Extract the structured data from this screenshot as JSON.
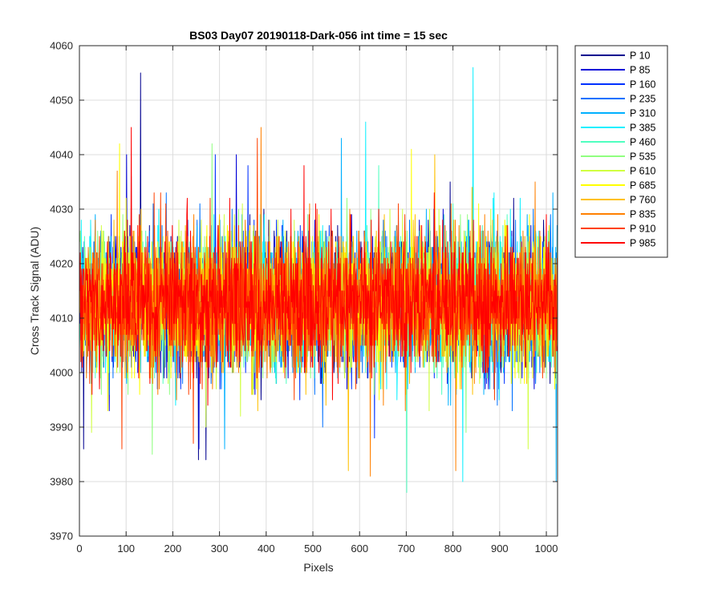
{
  "chart_data": {
    "type": "line",
    "title": "BS03 Day07 20190118-Dark-056 int time = 15 sec",
    "xlabel": "Pixels",
    "ylabel": "Cross Track Signal (ADU)",
    "xlim": [
      0,
      1024
    ],
    "ylim": [
      3970,
      4060
    ],
    "xticks": [
      0,
      100,
      200,
      300,
      400,
      500,
      600,
      700,
      800,
      900,
      1000
    ],
    "yticks": [
      3970,
      3980,
      3990,
      4000,
      4010,
      4020,
      4030,
      4040,
      4050,
      4060
    ],
    "grid": true,
    "legend_position": "outside-right",
    "series_summary": {
      "pixels": 1024,
      "typical_center": 4013,
      "typical_noise_std": 6
    },
    "series": [
      {
        "name": "P 10",
        "color": "#00008f",
        "spikes": [
          [
            130,
            4055
          ],
          [
            8,
            3986
          ],
          [
            254,
            3984
          ],
          [
            270,
            3984
          ]
        ]
      },
      {
        "name": "P 85",
        "color": "#0000d8",
        "spikes": [
          [
            100,
            4040
          ],
          [
            335,
            4040
          ],
          [
            255,
            3986
          ]
        ]
      },
      {
        "name": "P 160",
        "color": "#0030ff",
        "spikes": [
          [
            290,
            4040
          ],
          [
            360,
            4038
          ]
        ]
      },
      {
        "name": "P 235",
        "color": "#0070ff",
        "spikes": [
          [
            110,
            4036
          ],
          [
            520,
            3990
          ]
        ]
      },
      {
        "name": "P 310",
        "color": "#00b0ff",
        "spikes": [
          [
            560,
            4043
          ],
          [
            1020,
            3980
          ],
          [
            310,
            3986
          ]
        ]
      },
      {
        "name": "P 385",
        "color": "#10f0ff",
        "spikes": [
          [
            842,
            4056
          ],
          [
            612,
            4046
          ],
          [
            820,
            3980
          ]
        ]
      },
      {
        "name": "P 460",
        "color": "#50ffc0",
        "spikes": [
          [
            640,
            4038
          ],
          [
            700,
            3978
          ]
        ]
      },
      {
        "name": "P 535",
        "color": "#90ff80",
        "spikes": [
          [
            283,
            4042
          ],
          [
            155,
            3985
          ]
        ]
      },
      {
        "name": "P 610",
        "color": "#d0ff40",
        "spikes": [
          [
            880,
            4030
          ],
          [
            960,
            3986
          ]
        ]
      },
      {
        "name": "P 685",
        "color": "#ffff00",
        "spikes": [
          [
            85,
            4042
          ],
          [
            710,
            4041
          ]
        ]
      },
      {
        "name": "P 760",
        "color": "#ffc000",
        "spikes": [
          [
            760,
            4040
          ],
          [
            575,
            3982
          ]
        ]
      },
      {
        "name": "P 835",
        "color": "#ff8000",
        "spikes": [
          [
            388,
            4045
          ],
          [
            622,
            3981
          ],
          [
            805,
            3982
          ]
        ]
      },
      {
        "name": "P 910",
        "color": "#ff4000",
        "spikes": [
          [
            380,
            4043
          ],
          [
            90,
            3986
          ]
        ]
      },
      {
        "name": "P 985",
        "color": "#ff0000",
        "spikes": [
          [
            110,
            4045
          ],
          [
            480,
            4038
          ]
        ]
      }
    ]
  }
}
